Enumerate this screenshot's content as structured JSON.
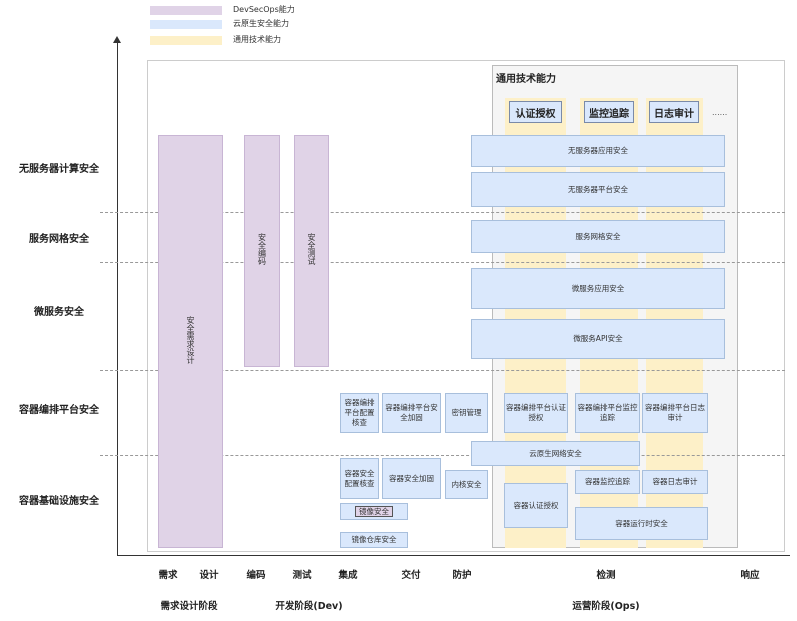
{
  "legend": [
    {
      "label": "DevSecOps能力",
      "color": "#e0d3e7"
    },
    {
      "label": "云原生安全能力",
      "color": "#dae8fc"
    },
    {
      "label": "通用技术能力",
      "color": "#fdf0c8"
    }
  ],
  "rows": [
    "无服务器计算安全",
    "服务网格安全",
    "微服务安全",
    "容器编排平台安全",
    "容器基础设施安全"
  ],
  "devsecops": [
    "安全需求设计",
    "安全编码",
    "安全测试"
  ],
  "general": {
    "title": "通用技术能力",
    "headers": [
      "认证授权",
      "监控追踪",
      "日志审计"
    ],
    "more": "......"
  },
  "boxes": {
    "serverless_app": "无服务器应用安全",
    "serverless_platform": "无服务器平台安全",
    "service_mesh": "服务网格安全",
    "microservice_app": "微服务应用安全",
    "microservice_api": "微服务API安全",
    "orch_config": "容器编排平台配置核查",
    "orch_harden": "容器编排平台安全加固",
    "key_mgmt": "密钥管理",
    "orch_auth": "容器编排平台认证授权",
    "orch_monitor": "容器编排平台监控追踪",
    "orch_log": "容器编排平台日志审计",
    "network": "云原生网络安全",
    "container_config": "容器安全配置核查",
    "container_harden": "容器安全加固",
    "kernel": "内核安全",
    "image": "镜像安全",
    "registry": "镜像仓库安全",
    "container_auth": "容器认证授权",
    "container_monitor": "容器监控追踪",
    "container_log": "容器日志审计",
    "runtime": "容器运行时安全"
  },
  "stages": [
    "需求",
    "设计",
    "编码",
    "测试",
    "集成",
    "交付",
    "防护",
    "检测",
    "响应"
  ],
  "phases": [
    "需求设计阶段",
    "开发阶段(Dev)",
    "运营阶段(Ops)"
  ]
}
